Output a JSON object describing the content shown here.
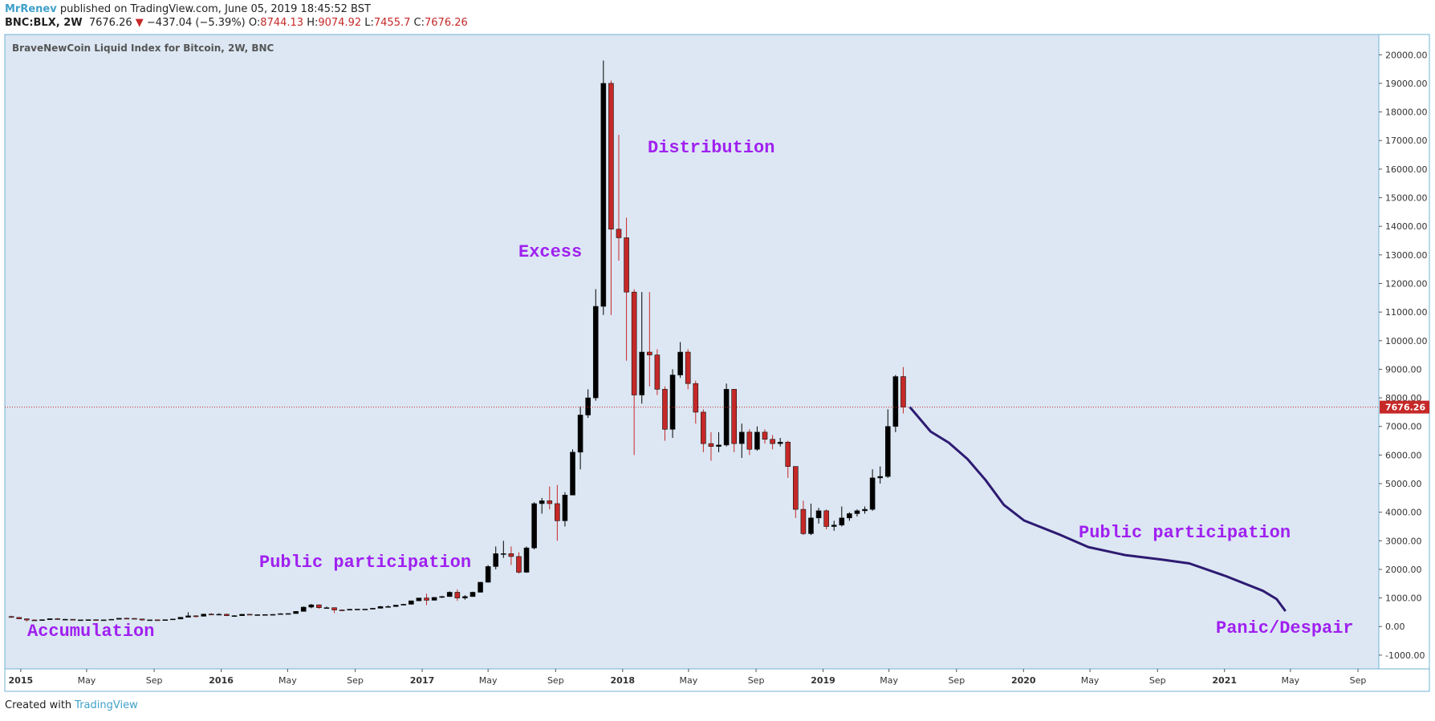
{
  "header": {
    "author": "MrRenev",
    "published": "published on TradingView.com, June 05, 2019 18:45:52 BST",
    "symbol": "BNC:BLX, 2W",
    "arrow": "▼",
    "change": "−437.04 (−5.39%)",
    "ohlc_labels": [
      "O:",
      "H:",
      "L:",
      "C:"
    ]
  },
  "footer": {
    "created": "Created with",
    "brand": "TradingView"
  },
  "chart_data": {
    "type": "candlestick",
    "title": "BraveNewCoin Liquid Index for Bitcoin, 2W, BNC",
    "up_color": "#000000",
    "down_color": "#c62828",
    "grid": false,
    "price_line_color": "#c62828",
    "x": [
      "2014-12-15",
      "2014-12-29",
      "2015-01-12",
      "2015-01-26",
      "2015-02-09",
      "2015-02-23",
      "2015-03-09",
      "2015-03-23",
      "2015-04-06",
      "2015-04-20",
      "2015-05-04",
      "2015-05-18",
      "2015-06-01",
      "2015-06-15",
      "2015-06-29",
      "2015-07-13",
      "2015-07-27",
      "2015-08-10",
      "2015-08-24",
      "2015-09-07",
      "2015-09-21",
      "2015-10-05",
      "2015-10-19",
      "2015-11-02",
      "2015-11-16",
      "2015-11-30",
      "2015-12-14",
      "2015-12-28",
      "2016-01-11",
      "2016-01-25",
      "2016-02-08",
      "2016-02-22",
      "2016-03-07",
      "2016-03-21",
      "2016-04-04",
      "2016-04-18",
      "2016-05-02",
      "2016-05-16",
      "2016-05-30",
      "2016-06-13",
      "2016-06-27",
      "2016-07-11",
      "2016-07-25",
      "2016-08-08",
      "2016-08-22",
      "2016-09-05",
      "2016-09-19",
      "2016-10-03",
      "2016-10-17",
      "2016-10-31",
      "2016-11-14",
      "2016-11-28",
      "2016-12-12",
      "2016-12-26",
      "2017-01-09",
      "2017-01-23",
      "2017-02-06",
      "2017-02-20",
      "2017-03-06",
      "2017-03-20",
      "2017-04-03",
      "2017-04-17",
      "2017-05-01",
      "2017-05-15",
      "2017-05-29",
      "2017-06-12",
      "2017-06-26",
      "2017-07-10",
      "2017-07-24",
      "2017-08-07",
      "2017-08-21",
      "2017-09-04",
      "2017-09-18",
      "2017-10-02",
      "2017-10-16",
      "2017-10-30",
      "2017-11-13",
      "2017-11-27",
      "2017-12-11",
      "2017-12-25",
      "2018-01-08",
      "2018-01-22",
      "2018-02-05",
      "2018-02-19",
      "2018-03-05",
      "2018-03-19",
      "2018-04-02",
      "2018-04-16",
      "2018-04-30",
      "2018-05-14",
      "2018-05-28",
      "2018-06-11",
      "2018-06-25",
      "2018-07-09",
      "2018-07-23",
      "2018-08-06",
      "2018-08-20",
      "2018-09-03",
      "2018-09-17",
      "2018-10-01",
      "2018-10-15",
      "2018-10-29",
      "2018-11-12",
      "2018-11-26",
      "2018-12-10",
      "2018-12-24",
      "2019-01-07",
      "2019-01-21",
      "2019-02-04",
      "2019-02-18",
      "2019-03-04",
      "2019-03-18",
      "2019-04-01",
      "2019-04-15",
      "2019-04-29",
      "2019-05-13",
      "2019-05-27"
    ],
    "open": [
      350,
      320,
      270,
      230,
      220,
      240,
      275,
      250,
      255,
      225,
      235,
      240,
      230,
      235,
      255,
      290,
      285,
      265,
      230,
      235,
      230,
      240,
      265,
      325,
      375,
      360,
      435,
      430,
      430,
      380,
      380,
      430,
      410,
      415,
      420,
      425,
      450,
      455,
      530,
      680,
      760,
      660,
      660,
      580,
      575,
      605,
      610,
      610,
      640,
      700,
      700,
      750,
      780,
      900,
      1000,
      920,
      1020,
      1050,
      1200,
      1000,
      1050,
      1200,
      1550,
      2100,
      2550,
      2550,
      2450,
      1900,
      2750,
      4300,
      4400,
      4300,
      3700,
      4600,
      6100,
      7400,
      8000,
      11200,
      19000,
      13900,
      13600,
      11700,
      8100,
      9600,
      9500,
      8300,
      6900,
      8800,
      9600,
      8500,
      7500,
      6400,
      6300,
      6350,
      8300,
      6400,
      6800,
      6200,
      6800,
      6550,
      6400,
      6450,
      5600,
      4100,
      3250,
      3800,
      4050,
      3500,
      3550,
      3800,
      3950,
      4050,
      4100,
      5200,
      5250,
      7000,
      8744.13
    ],
    "high": [
      380,
      335,
      290,
      260,
      250,
      285,
      300,
      270,
      260,
      245,
      250,
      245,
      245,
      260,
      300,
      315,
      300,
      270,
      240,
      245,
      245,
      270,
      330,
      500,
      400,
      450,
      470,
      465,
      455,
      400,
      440,
      440,
      425,
      425,
      435,
      465,
      470,
      540,
      700,
      790,
      770,
      700,
      670,
      600,
      620,
      615,
      620,
      645,
      720,
      740,
      760,
      785,
      910,
      1000,
      1150,
      1030,
      1070,
      1230,
      1300,
      1100,
      1220,
      1560,
      2150,
      2800,
      3000,
      2800,
      2600,
      2800,
      4350,
      4500,
      4900,
      4950,
      4700,
      6200,
      7700,
      8300,
      11800,
      19800,
      19100,
      17200,
      14300,
      11800,
      11700,
      11700,
      9700,
      8400,
      9000,
      9950,
      9700,
      8600,
      7600,
      6800,
      6800,
      8500,
      8300,
      7100,
      6900,
      7000,
      6900,
      6700,
      6600,
      6500,
      5600,
      4400,
      4300,
      4150,
      4100,
      3700,
      4200,
      4000,
      4100,
      4200,
      5500,
      5600,
      7600,
      8800,
      9074.92
    ],
    "low": [
      310,
      260,
      170,
      210,
      215,
      235,
      245,
      240,
      220,
      215,
      230,
      225,
      220,
      230,
      250,
      280,
      260,
      200,
      220,
      225,
      225,
      235,
      260,
      320,
      310,
      355,
      420,
      415,
      365,
      370,
      375,
      400,
      400,
      410,
      415,
      420,
      440,
      450,
      525,
      640,
      620,
      640,
      470,
      560,
      570,
      595,
      600,
      605,
      630,
      690,
      690,
      740,
      770,
      890,
      750,
      910,
      1000,
      1040,
      900,
      940,
      1040,
      1190,
      1540,
      2000,
      2400,
      2150,
      1850,
      1880,
      2700,
      3950,
      4100,
      3000,
      3500,
      4600,
      5500,
      7300,
      7900,
      10900,
      10900,
      12800,
      9300,
      6000,
      7800,
      8400,
      8100,
      6500,
      6600,
      8700,
      8300,
      7100,
      6100,
      5800,
      6100,
      6300,
      6100,
      5900,
      6000,
      6150,
      6400,
      6200,
      6300,
      5200,
      3800,
      3200,
      3200,
      3600,
      3400,
      3350,
      3500,
      3700,
      3850,
      3950,
      4050,
      5000,
      5200,
      6800,
      7455.7
    ],
    "close": [
      320,
      270,
      230,
      220,
      240,
      275,
      250,
      255,
      225,
      235,
      240,
      230,
      235,
      255,
      290,
      285,
      265,
      230,
      235,
      230,
      240,
      265,
      325,
      375,
      360,
      435,
      430,
      430,
      380,
      380,
      430,
      410,
      415,
      420,
      425,
      450,
      455,
      530,
      680,
      760,
      660,
      660,
      580,
      575,
      605,
      610,
      610,
      640,
      700,
      700,
      750,
      780,
      900,
      1000,
      920,
      1020,
      1050,
      1200,
      1000,
      1050,
      1200,
      1550,
      2100,
      2550,
      2550,
      2450,
      1900,
      2750,
      4300,
      4400,
      4300,
      3700,
      4600,
      6100,
      7400,
      8000,
      11200,
      19000,
      13900,
      13600,
      11700,
      8100,
      9600,
      9500,
      8300,
      6900,
      8800,
      9600,
      8500,
      7500,
      6400,
      6300,
      6350,
      8300,
      6400,
      6800,
      6200,
      6800,
      6550,
      6400,
      6450,
      5600,
      4100,
      3250,
      3800,
      4050,
      3500,
      3550,
      3800,
      3950,
      4050,
      4100,
      5200,
      5250,
      7000,
      8744.13,
      7676.26
    ],
    "xlim": [
      "2014-12-03",
      "2021-10-09"
    ],
    "xticks": [
      {
        "value": "2015-01-01",
        "label": "2015"
      },
      {
        "value": "2015-05-01",
        "label": "May"
      },
      {
        "value": "2015-09-01",
        "label": "Sep"
      },
      {
        "value": "2016-01-01",
        "label": "2016"
      },
      {
        "value": "2016-05-01",
        "label": "May"
      },
      {
        "value": "2016-09-01",
        "label": "Sep"
      },
      {
        "value": "2017-01-01",
        "label": "2017"
      },
      {
        "value": "2017-05-01",
        "label": "May"
      },
      {
        "value": "2017-09-01",
        "label": "Sep"
      },
      {
        "value": "2018-01-01",
        "label": "2018"
      },
      {
        "value": "2018-05-01",
        "label": "May"
      },
      {
        "value": "2018-09-01",
        "label": "Sep"
      },
      {
        "value": "2019-01-01",
        "label": "2019"
      },
      {
        "value": "2019-05-01",
        "label": "May"
      },
      {
        "value": "2019-09-01",
        "label": "Sep"
      },
      {
        "value": "2020-01-01",
        "label": "2020"
      },
      {
        "value": "2020-05-01",
        "label": "May"
      },
      {
        "value": "2020-09-01",
        "label": "Sep"
      },
      {
        "value": "2021-01-01",
        "label": "2021"
      },
      {
        "value": "2021-05-01",
        "label": "May"
      },
      {
        "value": "2021-09-01",
        "label": "Sep"
      }
    ],
    "ylim": [
      -1480,
      20710
    ],
    "yticks": [
      {
        "value": -1000,
        "label": "-1000.00"
      },
      {
        "value": 0,
        "label": "0.00"
      },
      {
        "value": 1000,
        "label": "1000.00"
      },
      {
        "value": 2000,
        "label": "2000.00"
      },
      {
        "value": 3000,
        "label": "3000.00"
      },
      {
        "value": 4000,
        "label": "4000.00"
      },
      {
        "value": 5000,
        "label": "5000.00"
      },
      {
        "value": 6000,
        "label": "6000.00"
      },
      {
        "value": 7000,
        "label": "7000.00"
      },
      {
        "value": 8000,
        "label": "8000.00"
      },
      {
        "value": 9000,
        "label": "9000.00"
      },
      {
        "value": 10000,
        "label": "10000.00"
      },
      {
        "value": 11000,
        "label": "11000.00"
      },
      {
        "value": 12000,
        "label": "12000.00"
      },
      {
        "value": 13000,
        "label": "13000.00"
      },
      {
        "value": 14000,
        "label": "14000.00"
      },
      {
        "value": 15000,
        "label": "15000.00"
      },
      {
        "value": 16000,
        "label": "16000.00"
      },
      {
        "value": 17000,
        "label": "17000.00"
      },
      {
        "value": 18000,
        "label": "18000.00"
      },
      {
        "value": 19000,
        "label": "19000.00"
      },
      {
        "value": 20000,
        "label": "20000.00"
      }
    ],
    "projection": {
      "color": "#2e1a72",
      "x": [
        "2019-06-08",
        "2019-07-16",
        "2019-08-18",
        "2019-09-21",
        "2019-10-24",
        "2019-11-26",
        "2020-01-02",
        "2020-03-09",
        "2020-04-28",
        "2020-07-04",
        "2020-09-09",
        "2020-10-29",
        "2021-01-04",
        "2021-03-12",
        "2021-04-06",
        "2021-04-22"
      ],
      "values": [
        7680,
        6820,
        6430,
        5860,
        5120,
        4260,
        3710,
        3200,
        2780,
        2500,
        2340,
        2210,
        1760,
        1250,
        960,
        540
      ]
    },
    "annotation_color": "#a020f0",
    "annotations": [
      "Accumulation",
      "Public participation",
      "Excess",
      "Distribution",
      "Public participation",
      "Panic/Despair"
    ]
  }
}
